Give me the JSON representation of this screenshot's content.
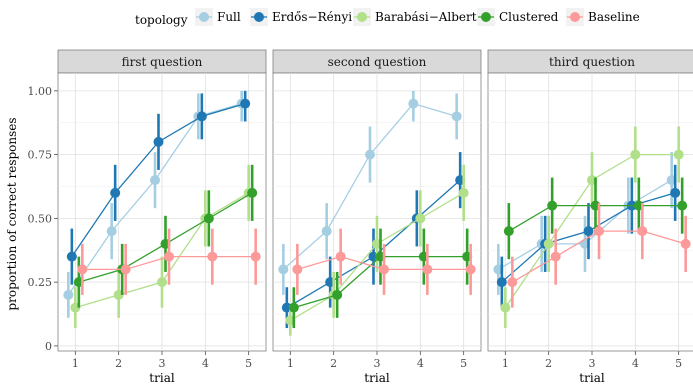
{
  "chart_data": {
    "type": "line",
    "legend_title": "topology",
    "legend_position": "top",
    "xlabel": "trial",
    "ylabel": "proportion of correct responses",
    "x": [
      1,
      2,
      3,
      4,
      5
    ],
    "xlim": [
      0.6,
      5.4
    ],
    "ylim": [
      -0.02,
      1.07
    ],
    "y_ticks": [
      0,
      0.25,
      0.5,
      0.75,
      1
    ],
    "y_tick_labels": [
      "0",
      "0.25",
      "0.50",
      "0.75",
      "1.00"
    ],
    "x_tick_labels": [
      "1",
      "2",
      "3",
      "4",
      "5"
    ],
    "grid": true,
    "series": [
      {
        "name": "Full",
        "color": "#a6cee3"
      },
      {
        "name": "Erdős−Rényi",
        "color": "#1f78b4"
      },
      {
        "name": "Barabási−Albert",
        "color": "#b2df8a"
      },
      {
        "name": "Clustered",
        "color": "#33a02c"
      },
      {
        "name": "Baseline",
        "color": "#fb9a99"
      }
    ],
    "panels": [
      {
        "title": "first question",
        "series_values": [
          {
            "y": [
              0.2,
              0.45,
              0.65,
              0.9,
              0.95
            ],
            "lo": [
              0.11,
              0.34,
              0.54,
              0.81,
              0.88
            ],
            "hi": [
              0.29,
              0.56,
              0.76,
              0.99,
              1.0
            ]
          },
          {
            "y": [
              0.35,
              0.6,
              0.8,
              0.9,
              0.95
            ],
            "lo": [
              0.24,
              0.49,
              0.69,
              0.81,
              0.88
            ],
            "hi": [
              0.46,
              0.71,
              0.91,
              0.99,
              1.0
            ]
          },
          {
            "y": [
              0.15,
              0.2,
              0.25,
              0.5,
              0.6
            ],
            "lo": [
              0.07,
              0.11,
              0.15,
              0.39,
              0.49
            ],
            "hi": [
              0.23,
              0.29,
              0.35,
              0.61,
              0.71
            ]
          },
          {
            "y": [
              0.25,
              0.3,
              0.4,
              0.5,
              0.6
            ],
            "lo": [
              0.15,
              0.2,
              0.29,
              0.39,
              0.49
            ],
            "hi": [
              0.35,
              0.4,
              0.51,
              0.61,
              0.71
            ]
          },
          {
            "y": [
              0.3,
              0.3,
              0.35,
              0.35,
              0.35
            ],
            "lo": [
              0.2,
              0.2,
              0.24,
              0.24,
              0.24
            ],
            "hi": [
              0.4,
              0.4,
              0.46,
              0.46,
              0.46
            ]
          }
        ]
      },
      {
        "title": "second question",
        "series_values": [
          {
            "y": [
              0.3,
              0.45,
              0.75,
              0.95,
              0.9
            ],
            "lo": [
              0.2,
              0.34,
              0.64,
              0.88,
              0.81
            ],
            "hi": [
              0.4,
              0.56,
              0.86,
              1.0,
              0.99
            ]
          },
          {
            "y": [
              0.15,
              0.25,
              0.35,
              0.5,
              0.65
            ],
            "lo": [
              0.07,
              0.15,
              0.24,
              0.39,
              0.54
            ],
            "hi": [
              0.23,
              0.35,
              0.46,
              0.61,
              0.76
            ]
          },
          {
            "y": [
              0.1,
              0.2,
              0.4,
              0.5,
              0.6
            ],
            "lo": [
              0.04,
              0.11,
              0.29,
              0.39,
              0.49
            ],
            "hi": [
              0.16,
              0.29,
              0.51,
              0.61,
              0.71
            ]
          },
          {
            "y": [
              0.15,
              0.2,
              0.35,
              0.35,
              0.35
            ],
            "lo": [
              0.07,
              0.11,
              0.24,
              0.24,
              0.24
            ],
            "hi": [
              0.23,
              0.29,
              0.46,
              0.46,
              0.46
            ]
          },
          {
            "y": [
              0.3,
              0.35,
              0.3,
              0.3,
              0.3
            ],
            "lo": [
              0.2,
              0.24,
              0.2,
              0.2,
              0.2
            ],
            "hi": [
              0.4,
              0.46,
              0.4,
              0.4,
              0.4
            ]
          }
        ]
      },
      {
        "title": "third question",
        "series_values": [
          {
            "y": [
              0.3,
              0.4,
              0.4,
              0.55,
              0.65
            ],
            "lo": [
              0.2,
              0.29,
              0.29,
              0.44,
              0.54
            ],
            "hi": [
              0.4,
              0.51,
              0.51,
              0.66,
              0.76
            ]
          },
          {
            "y": [
              0.25,
              0.4,
              0.45,
              0.55,
              0.6
            ],
            "lo": [
              0.15,
              0.29,
              0.34,
              0.44,
              0.49
            ],
            "hi": [
              0.35,
              0.51,
              0.56,
              0.66,
              0.71
            ]
          },
          {
            "y": [
              0.15,
              0.4,
              0.65,
              0.75,
              0.75
            ],
            "lo": [
              0.07,
              0.29,
              0.54,
              0.64,
              0.64
            ],
            "hi": [
              0.23,
              0.51,
              0.76,
              0.86,
              0.86
            ]
          },
          {
            "y": [
              0.45,
              0.55,
              0.55,
              0.55,
              0.55
            ],
            "lo": [
              0.34,
              0.44,
              0.44,
              0.44,
              0.44
            ],
            "hi": [
              0.56,
              0.66,
              0.66,
              0.66,
              0.66
            ]
          },
          {
            "y": [
              0.25,
              0.35,
              0.45,
              0.45,
              0.4
            ],
            "lo": [
              0.15,
              0.24,
              0.34,
              0.34,
              0.29
            ],
            "hi": [
              0.35,
              0.46,
              0.56,
              0.56,
              0.51
            ]
          }
        ]
      }
    ]
  }
}
